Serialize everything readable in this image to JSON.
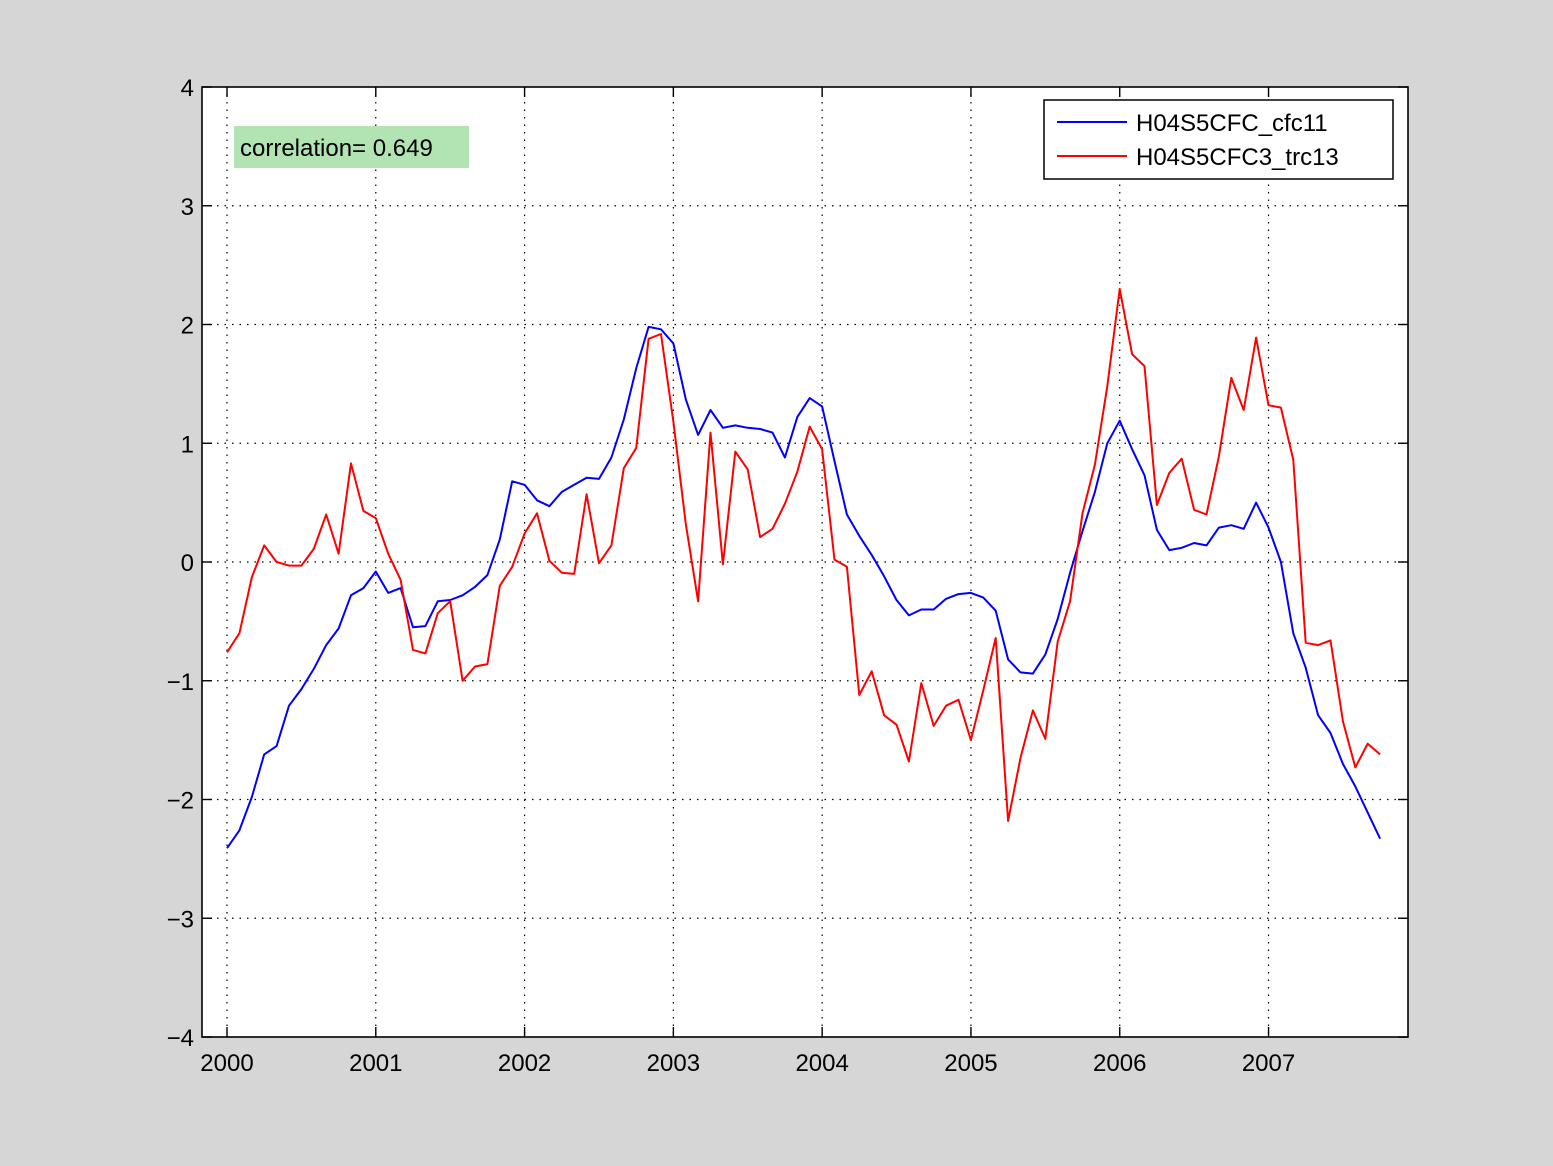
{
  "figure": {
    "background": "#d6d6d6",
    "axes_background": "#ffffff"
  },
  "annotation": {
    "text": "correlation= 0.649",
    "background": "#b2e3b2"
  },
  "chart_data": {
    "type": "line",
    "title": "",
    "xlabel": "",
    "ylabel": "",
    "xlim": [
      2000.0,
      2007.85
    ],
    "ylim": [
      -4,
      4
    ],
    "grid": true,
    "grid_style": "dotted",
    "legend_position": "top-right",
    "x_tick_labels": [
      "2000",
      "2001",
      "2002",
      "2003",
      "2004",
      "2005",
      "2006",
      "2007"
    ],
    "y_tick_labels": [
      "−4",
      "−3",
      "−2",
      "−1",
      "0",
      "1",
      "2",
      "3",
      "4"
    ],
    "series": [
      {
        "name": "H04S5CFC_cfc11",
        "color": "#0000ff",
        "x_start": 2000.0,
        "x_step": 0.08333,
        "values": [
          -2.41,
          -2.26,
          -1.98,
          -1.62,
          -1.55,
          -1.21,
          -1.07,
          -0.9,
          -0.7,
          -0.56,
          -0.28,
          -0.22,
          -0.08,
          -0.26,
          -0.22,
          -0.55,
          -0.54,
          -0.33,
          -0.32,
          -0.28,
          -0.21,
          -0.11,
          0.19,
          0.68,
          0.65,
          0.52,
          0.47,
          0.59,
          0.65,
          0.71,
          0.7,
          0.88,
          1.2,
          1.63,
          1.98,
          1.96,
          1.84,
          1.37,
          1.07,
          1.28,
          1.13,
          1.15,
          1.13,
          1.12,
          1.09,
          0.88,
          1.22,
          1.38,
          1.31,
          0.85,
          0.4,
          0.22,
          0.06,
          -0.12,
          -0.32,
          -0.45,
          -0.4,
          -0.4,
          -0.31,
          -0.27,
          -0.26,
          -0.3,
          -0.41,
          -0.82,
          -0.93,
          -0.94,
          -0.78,
          -0.48,
          -0.09,
          0.26,
          0.59,
          1.0,
          1.19,
          0.95,
          0.73,
          0.27,
          0.1,
          0.12,
          0.16,
          0.14,
          0.29,
          0.31,
          0.28,
          0.5,
          0.29,
          0.0,
          -0.6,
          -0.89,
          -1.29,
          -1.44,
          -1.7,
          -1.89,
          -2.11,
          -2.33
        ]
      },
      {
        "name": "H04S5CFC3_trc13",
        "color": "#ff0000",
        "x_start": 2000.0,
        "x_step": 0.08333,
        "values": [
          -0.76,
          -0.6,
          -0.13,
          0.14,
          0.0,
          -0.03,
          -0.03,
          0.11,
          0.4,
          0.07,
          0.83,
          0.43,
          0.37,
          0.07,
          -0.15,
          -0.74,
          -0.77,
          -0.43,
          -0.33,
          -1.0,
          -0.88,
          -0.86,
          -0.2,
          -0.04,
          0.24,
          0.41,
          0.01,
          -0.09,
          -0.1,
          0.57,
          -0.01,
          0.14,
          0.79,
          0.96,
          1.88,
          1.92,
          1.18,
          0.32,
          -0.33,
          1.09,
          -0.02,
          0.93,
          0.78,
          0.21,
          0.28,
          0.49,
          0.76,
          1.14,
          0.95,
          0.02,
          -0.04,
          -1.12,
          -0.92,
          -1.29,
          -1.37,
          -1.68,
          -1.02,
          -1.38,
          -1.21,
          -1.16,
          -1.5,
          -1.08,
          -0.64,
          -2.18,
          -1.65,
          -1.25,
          -1.49,
          -0.67,
          -0.33,
          0.41,
          0.82,
          1.48,
          2.3,
          1.75,
          1.65,
          0.48,
          0.75,
          0.87,
          0.44,
          0.4,
          0.89,
          1.55,
          1.28,
          1.89,
          1.32,
          1.3,
          0.86,
          -0.68,
          -0.7,
          -0.66,
          -1.34,
          -1.73,
          -1.53,
          -1.62
        ]
      }
    ]
  }
}
